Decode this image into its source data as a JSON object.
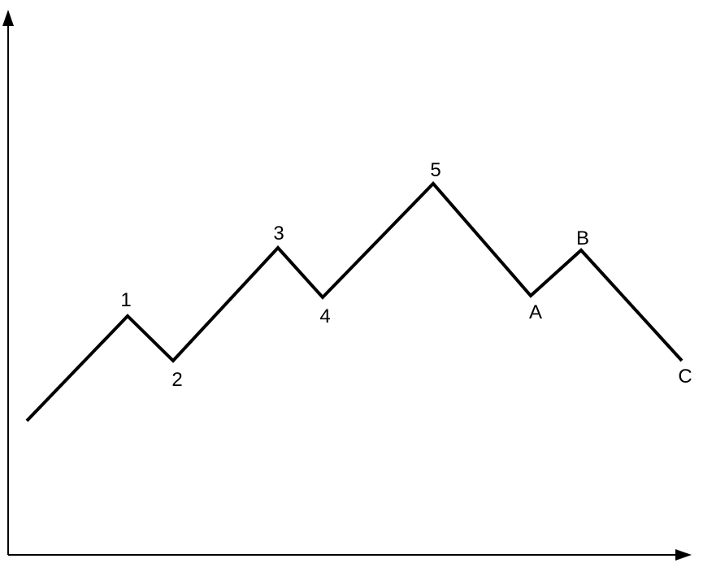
{
  "diagram": {
    "type": "elliott-wave",
    "points": [
      {
        "id": "start",
        "label": ""
      },
      {
        "id": "wave-1",
        "label": "1"
      },
      {
        "id": "wave-2",
        "label": "2"
      },
      {
        "id": "wave-3",
        "label": "3"
      },
      {
        "id": "wave-4",
        "label": "4"
      },
      {
        "id": "wave-5",
        "label": "5"
      },
      {
        "id": "wave-a",
        "label": "A"
      },
      {
        "id": "wave-b",
        "label": "B"
      },
      {
        "id": "wave-c",
        "label": "C"
      }
    ]
  }
}
